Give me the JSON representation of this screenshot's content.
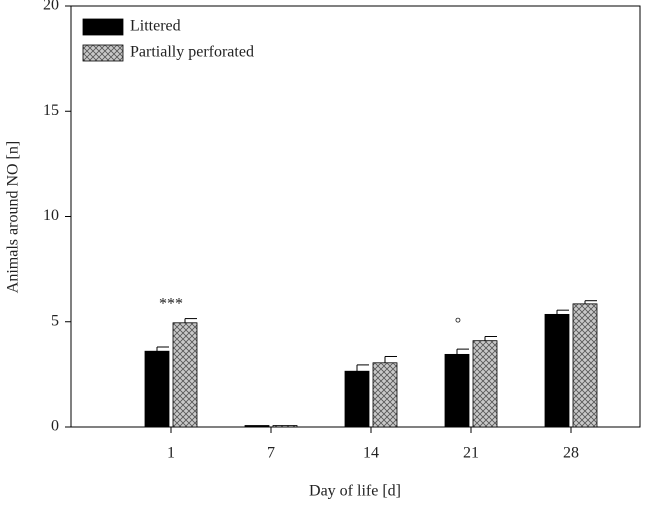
{
  "chart_data": {
    "type": "bar",
    "x_label": "Day of life [d]",
    "y_label": "Animals around NO [n]",
    "categories": [
      "1",
      "7",
      "14",
      "21",
      "28"
    ],
    "series": [
      {
        "name": "Littered",
        "color": "#000000",
        "values": [
          3.6,
          0,
          2.65,
          3.45,
          5.35
        ],
        "errors": [
          0.2,
          0,
          0.3,
          0.25,
          0.2
        ]
      },
      {
        "name": "Partially perforated",
        "color": "#b0b0b0",
        "values": [
          4.95,
          0,
          3.05,
          4.1,
          5.85
        ],
        "errors": [
          0.2,
          0,
          0.3,
          0.2,
          0.15
        ]
      }
    ],
    "annotations": [
      "***",
      "°"
    ],
    "ylim": [
      0,
      20
    ],
    "yticks": [
      0,
      5,
      10,
      15,
      20
    ],
    "grid": false
  }
}
